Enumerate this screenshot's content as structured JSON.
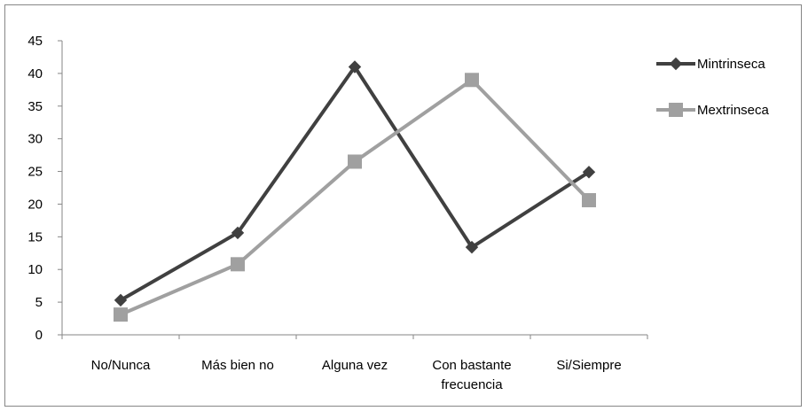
{
  "chart_data": {
    "type": "line",
    "categories": [
      [
        "No/Nunca"
      ],
      [
        "Más bien no"
      ],
      [
        "Alguna vez"
      ],
      [
        "Con bastante",
        "frecuencia"
      ],
      [
        "Si/Siempre"
      ]
    ],
    "series": [
      {
        "name": "Mintrinseca",
        "values": [
          5.3,
          15.6,
          41.0,
          13.4,
          24.9
        ],
        "color": "#404040",
        "marker": "diamond"
      },
      {
        "name": "Mextrinseca",
        "values": [
          3.1,
          10.8,
          26.5,
          39.0,
          20.6
        ],
        "color": "#a0a0a0",
        "marker": "square"
      }
    ],
    "ylim": [
      0,
      45
    ],
    "yticks": [
      0,
      5,
      10,
      15,
      20,
      25,
      30,
      35,
      40,
      45
    ],
    "grid": false,
    "legend": "right",
    "title": "",
    "xlabel": "",
    "ylabel": ""
  }
}
